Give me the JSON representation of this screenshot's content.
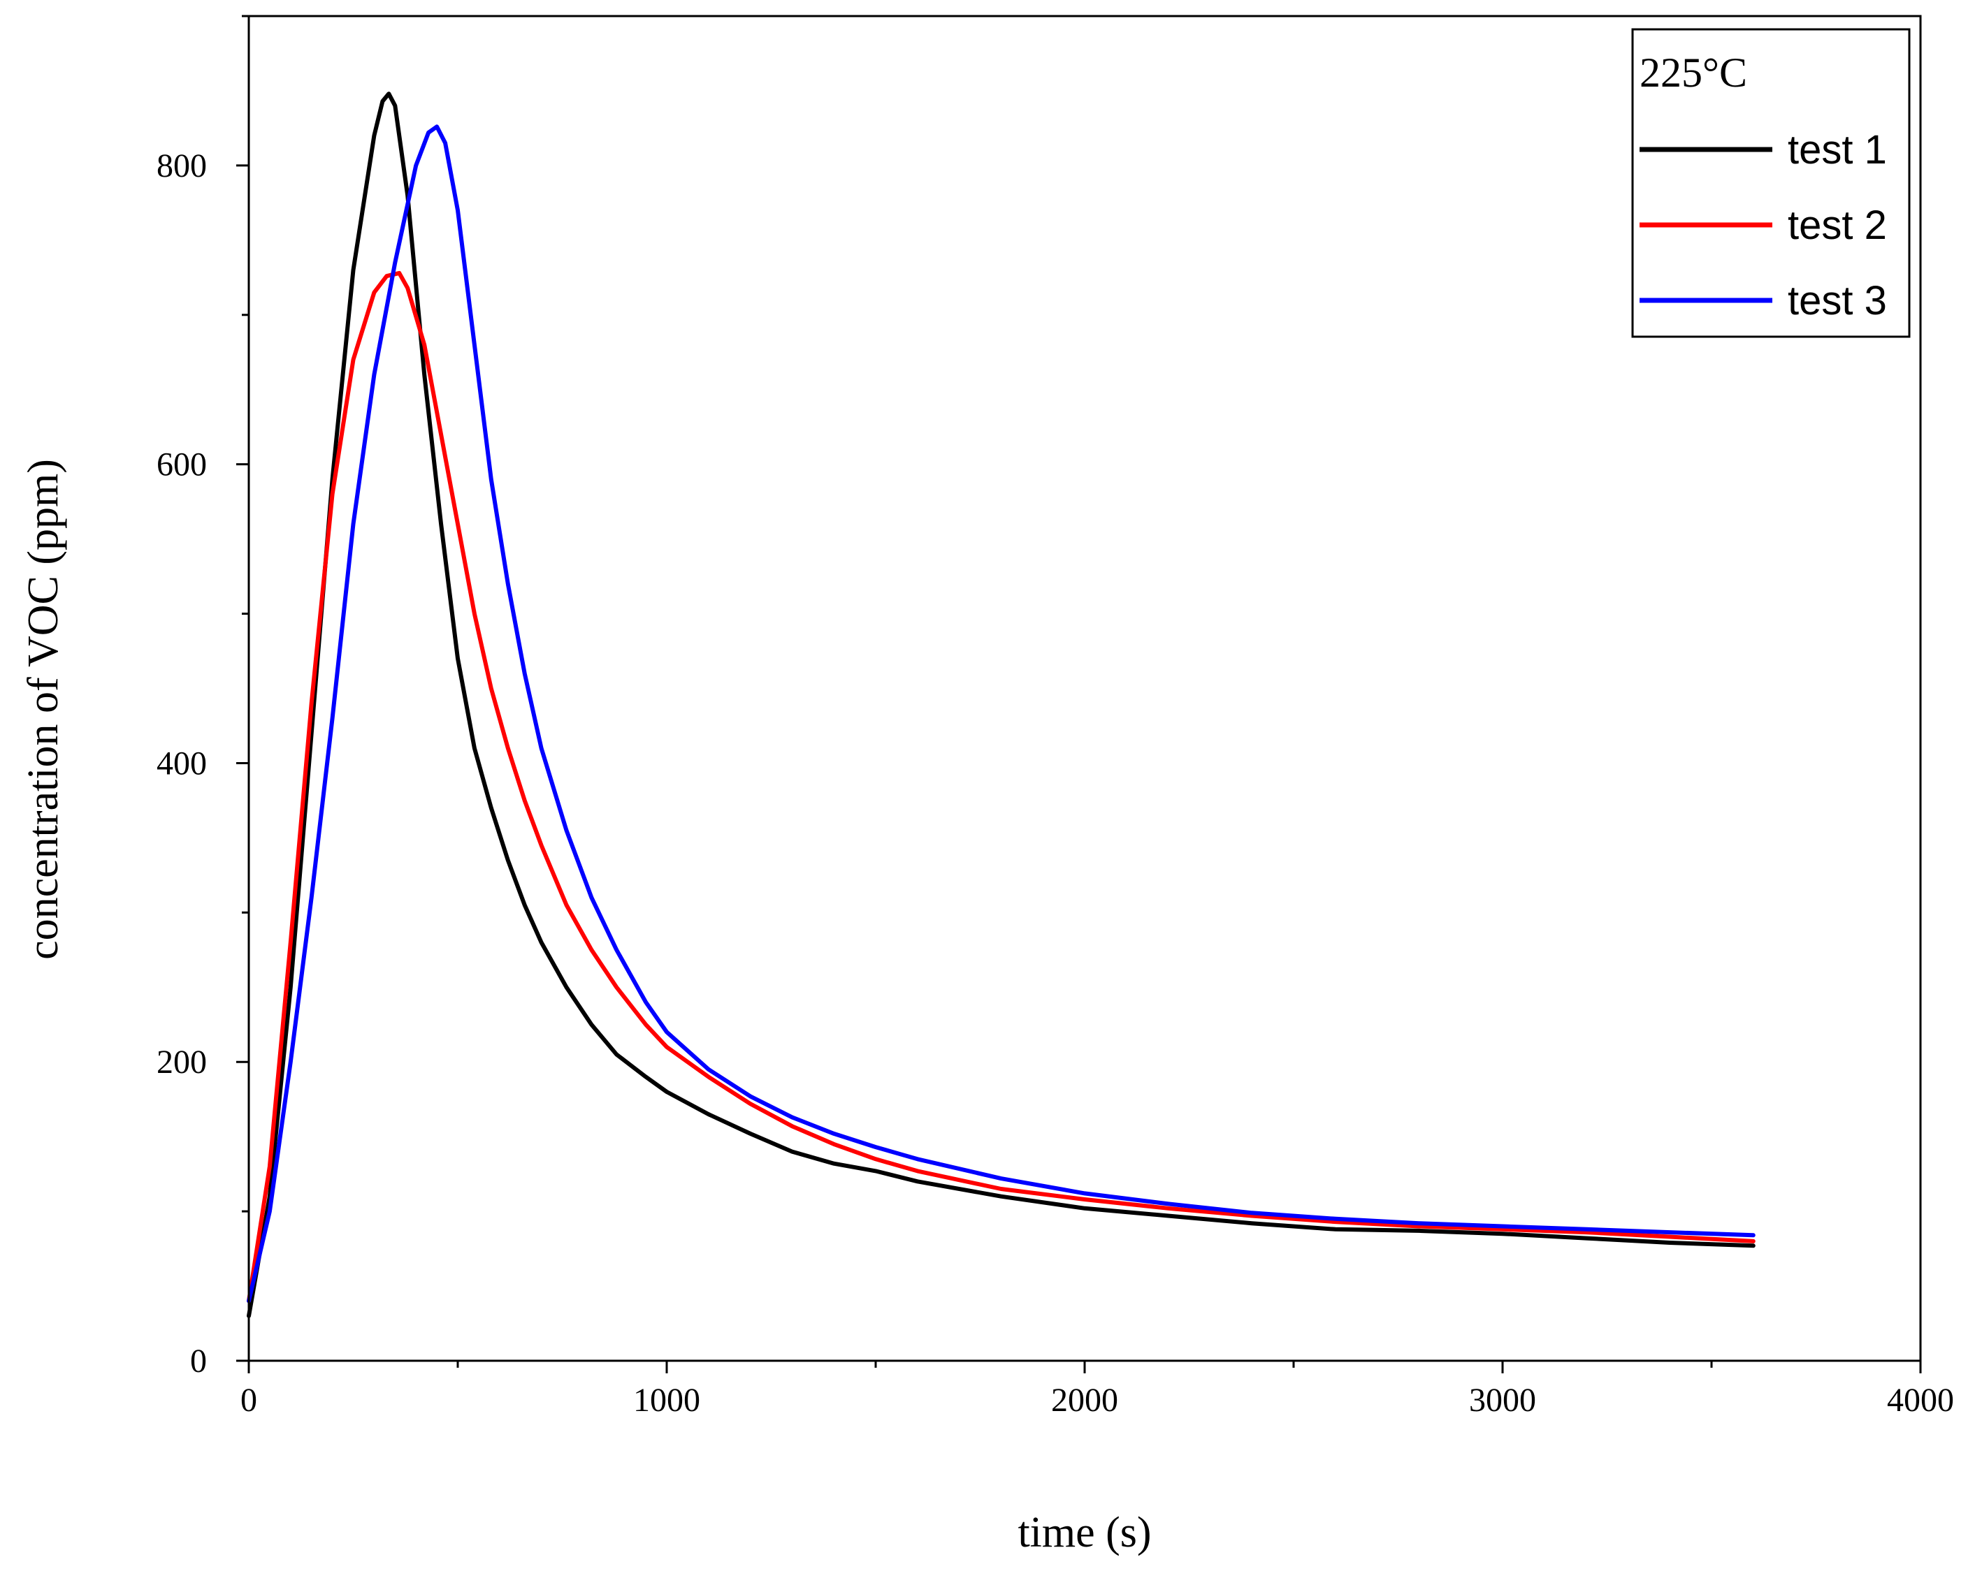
{
  "chart_data": {
    "type": "line",
    "xlabel": "time (s)",
    "ylabel": "concentration of VOC (ppm)",
    "xlim": [
      0,
      4000
    ],
    "ylim": [
      0,
      900
    ],
    "x_ticks": [
      0,
      1000,
      2000,
      3000,
      4000
    ],
    "y_ticks": [
      0,
      200,
      400,
      600,
      800
    ],
    "x_tick_labels": [
      "0",
      "1000",
      "2000",
      "3000",
      "4000"
    ],
    "y_tick_labels": [
      "0",
      "200",
      "400",
      "600",
      "800"
    ],
    "grid": false,
    "legend": {
      "title": "225°C",
      "placement": "top-right"
    },
    "series": [
      {
        "name": "test 1",
        "color": "#000000",
        "x": [
          0,
          50,
          100,
          150,
          200,
          250,
          300,
          320,
          335,
          350,
          380,
          420,
          460,
          500,
          540,
          580,
          620,
          660,
          700,
          760,
          820,
          880,
          950,
          1000,
          1100,
          1200,
          1300,
          1400,
          1500,
          1600,
          1800,
          2000,
          2200,
          2400,
          2600,
          2800,
          3000,
          3200,
          3400,
          3600
        ],
        "y": [
          30,
          110,
          250,
          420,
          590,
          730,
          820,
          843,
          848,
          840,
          780,
          660,
          560,
          470,
          410,
          370,
          335,
          305,
          280,
          250,
          225,
          205,
          190,
          180,
          165,
          152,
          140,
          132,
          127,
          120,
          110,
          102,
          97,
          92,
          88,
          87,
          85,
          82,
          79,
          77
        ]
      },
      {
        "name": "test 2",
        "color": "#ff0000",
        "x": [
          0,
          50,
          100,
          150,
          200,
          250,
          300,
          330,
          360,
          380,
          420,
          460,
          500,
          540,
          580,
          620,
          660,
          700,
          760,
          820,
          880,
          950,
          1000,
          1100,
          1200,
          1300,
          1400,
          1500,
          1600,
          1800,
          2000,
          2200,
          2400,
          2600,
          2800,
          3000,
          3200,
          3400,
          3600
        ],
        "y": [
          40,
          130,
          280,
          440,
          580,
          670,
          715,
          726,
          728,
          718,
          680,
          620,
          560,
          500,
          450,
          410,
          375,
          345,
          305,
          275,
          250,
          225,
          210,
          190,
          172,
          157,
          145,
          135,
          127,
          115,
          108,
          102,
          97,
          93,
          90,
          88,
          86,
          83,
          80
        ]
      },
      {
        "name": "test 3",
        "color": "#0000ff",
        "x": [
          0,
          50,
          100,
          150,
          200,
          250,
          300,
          350,
          400,
          430,
          450,
          470,
          500,
          540,
          580,
          620,
          660,
          700,
          760,
          820,
          880,
          950,
          1000,
          1100,
          1200,
          1300,
          1400,
          1500,
          1600,
          1800,
          2000,
          2200,
          2400,
          2600,
          2800,
          3000,
          3200,
          3400,
          3600
        ],
        "y": [
          40,
          100,
          200,
          310,
          430,
          560,
          660,
          735,
          800,
          822,
          826,
          815,
          770,
          680,
          590,
          520,
          460,
          410,
          355,
          310,
          275,
          240,
          220,
          195,
          177,
          163,
          152,
          143,
          135,
          122,
          112,
          105,
          99,
          95,
          92,
          90,
          88,
          86,
          84
        ]
      }
    ]
  }
}
